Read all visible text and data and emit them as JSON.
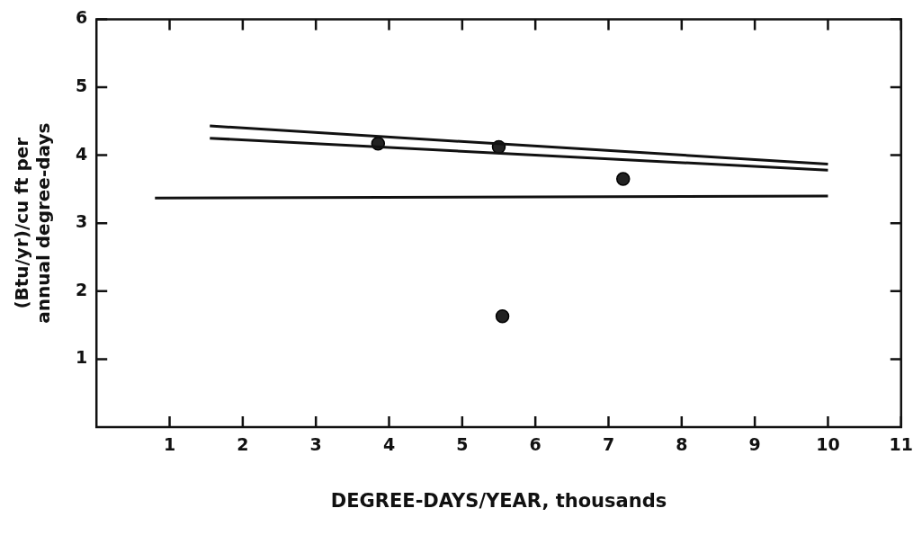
{
  "chart_data": {
    "type": "scatter",
    "xlabel": "DEGREE-DAYS/YEAR, thousands",
    "ylabel": "(Btu/yr)/cu ft per\nannual degree-days",
    "xlim": [
      0,
      11
    ],
    "xticks": [
      1,
      2,
      3,
      4,
      5,
      6,
      7,
      8,
      9,
      10,
      11
    ],
    "ylim": [
      0,
      6
    ],
    "yticks": [
      1,
      2,
      3,
      4,
      5,
      6
    ],
    "grid": false,
    "legend": false,
    "marker": "circle",
    "series": [
      {
        "type": "line",
        "color": "#111111",
        "marker": "none",
        "x": [
          1.55,
          10
        ],
        "values": [
          4.43,
          3.87
        ]
      },
      {
        "type": "line",
        "color": "#111111",
        "marker": "none",
        "x": [
          1.55,
          10
        ],
        "values": [
          4.25,
          3.78
        ]
      },
      {
        "type": "line",
        "color": "#111111",
        "marker": "none",
        "x": [
          0.8,
          10
        ],
        "values": [
          3.37,
          3.4
        ]
      },
      {
        "type": "scatter",
        "color": "#222222",
        "x": [
          3.85,
          5.5,
          7.2,
          5.55
        ],
        "values": [
          4.17,
          4.12,
          3.65,
          1.63
        ]
      }
    ]
  }
}
